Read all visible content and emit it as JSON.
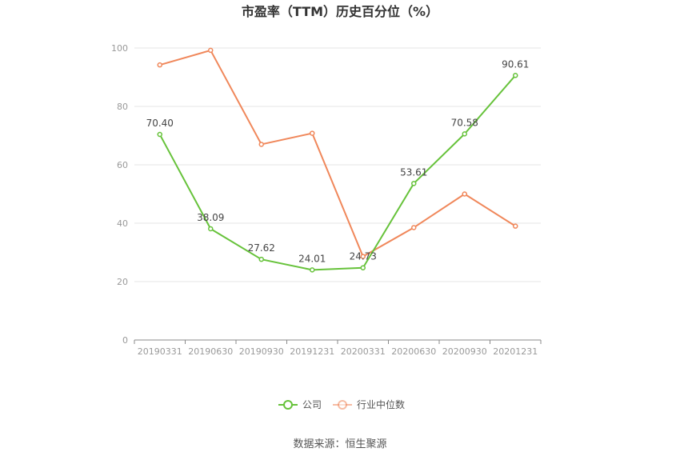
{
  "chart_data": {
    "type": "line",
    "title": "市盈率（TTM）历史百分位（%）",
    "x": [
      "20190331",
      "20190630",
      "20190930",
      "20191231",
      "20200331",
      "20200630",
      "20200930",
      "20201231"
    ],
    "ylim": [
      0,
      100
    ],
    "yticks": [
      0,
      20,
      40,
      60,
      80,
      100
    ],
    "grid": true,
    "legend_position": "bottom",
    "series": [
      {
        "name": "公司",
        "color": "#66c23a",
        "values": [
          70.4,
          38.09,
          27.62,
          24.01,
          24.73,
          53.61,
          70.58,
          90.61
        ],
        "labels": [
          "70.40",
          "38.09",
          "27.62",
          "24.01",
          "24.73",
          "53.61",
          "70.58",
          "90.61"
        ]
      },
      {
        "name": "行业中位数",
        "color": "#f0875a",
        "values": [
          94.2,
          99.2,
          67.0,
          70.8,
          28.6,
          38.5,
          50.0,
          39.0
        ]
      }
    ]
  },
  "source": "数据来源：恒生聚源"
}
